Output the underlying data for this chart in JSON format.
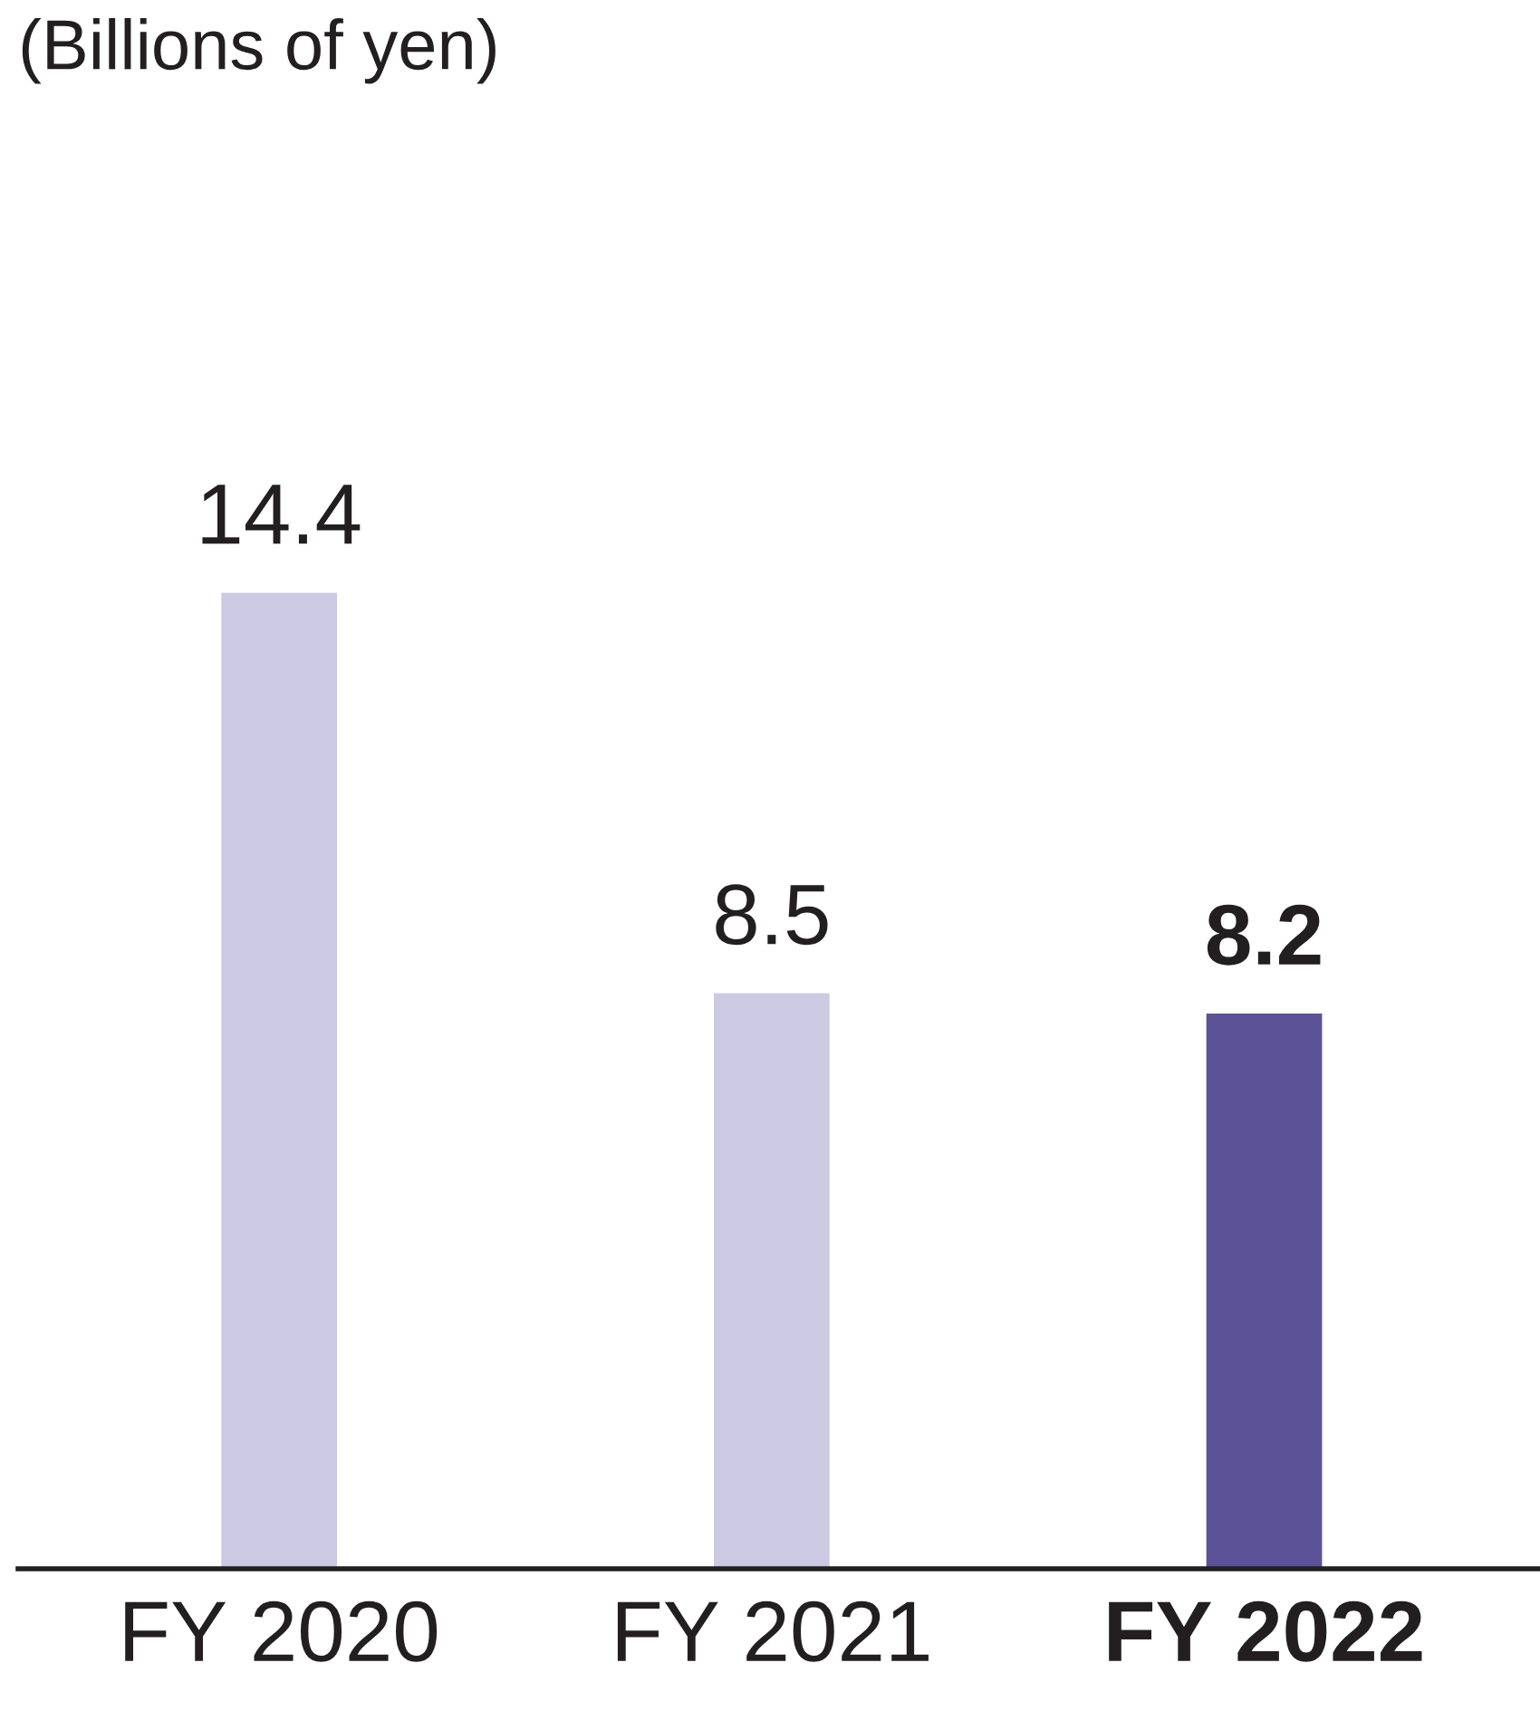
{
  "chart_data": {
    "type": "bar",
    "annotations": [
      "(Billions of yen)"
    ],
    "categories": [
      "FY 2020",
      "FY 2021",
      "FY 2022"
    ],
    "values": [
      14.4,
      8.5,
      8.2
    ],
    "colors": [
      "#cccae3",
      "#cccae3",
      "#5b5298"
    ],
    "data_labels": true,
    "grid": false,
    "legend": false
  }
}
